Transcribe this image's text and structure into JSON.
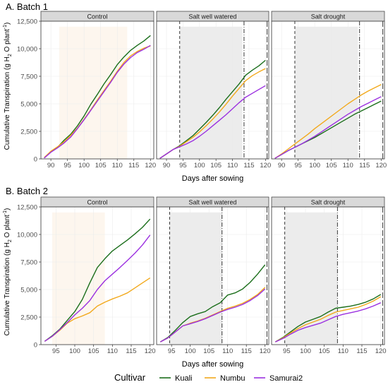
{
  "colors": {
    "Kuali": "#1b6e1b",
    "Numbu": "#f2a91c",
    "Samurai2": "#9b30e0",
    "strip_fill": "#d9d9d9",
    "control_shade": "#fdf6ee",
    "salt_shade": "#ececec"
  },
  "legend": {
    "title": "Cultivar",
    "placement": "bottom",
    "entries": [
      "Kuali",
      "Numbu",
      "Samurai2"
    ]
  },
  "chart_data": [
    {
      "type": "line",
      "title": "A. Batch 1",
      "xlabel": "Days after sowing",
      "ylabel_main": "Cumulative Transpiration (g H",
      "ylabel_sub1": "2",
      "ylabel_mid": " O plant",
      "ylabel_sup": "-1",
      "ylabel_end": ")",
      "xlim": [
        87,
        121
      ],
      "ylim": [
        0,
        12500
      ],
      "xticks": [
        90,
        95,
        100,
        105,
        110,
        115,
        120
      ],
      "yticks": [
        0,
        2500,
        5000,
        7500,
        10000,
        12500
      ],
      "ytick_labels": [
        "0",
        "2,500",
        "5,000",
        "7,500",
        "10,000",
        "12,500"
      ],
      "grid": true,
      "facets": [
        {
          "label": "Control",
          "shade": [
            92.5,
            113
          ],
          "vlines": [],
          "series": [
            {
              "name": "Kuali",
              "x": [
                88,
                90,
                92,
                94,
                96,
                98,
                100,
                102,
                104,
                106,
                108,
                110,
                112,
                114,
                116,
                118,
                120
              ],
              "y": [
                100,
                650,
                1050,
                1700,
                2250,
                3000,
                3900,
                4950,
                5850,
                6800,
                7650,
                8550,
                9250,
                9850,
                10300,
                10700,
                11200
              ]
            },
            {
              "name": "Numbu",
              "x": [
                88,
                90,
                92,
                94,
                96,
                98,
                100,
                102,
                104,
                106,
                108,
                110,
                112,
                114,
                116,
                118,
                120
              ],
              "y": [
                120,
                700,
                1100,
                1550,
                2150,
                2800,
                3600,
                4450,
                5350,
                6200,
                7050,
                7950,
                8750,
                9350,
                9750,
                10050,
                10250
              ]
            },
            {
              "name": "Samurai2",
              "x": [
                88,
                90,
                92,
                94,
                96,
                98,
                100,
                102,
                104,
                106,
                108,
                110,
                112,
                114,
                116,
                118,
                120
              ],
              "y": [
                80,
                600,
                1000,
                1450,
                2000,
                2750,
                3550,
                4400,
                5250,
                6100,
                6950,
                7850,
                8600,
                9200,
                9650,
                9950,
                10300
              ]
            }
          ]
        },
        {
          "label": "Salt well watered",
          "shade": [
            94,
            113
          ],
          "vlines": [
            {
              "x": 94,
              "style": "dashed"
            },
            {
              "x": 113.5,
              "style": "dashdot"
            },
            {
              "x": 120.5,
              "style": "longdash"
            }
          ],
          "series": [
            {
              "name": "Kuali",
              "x": [
                88,
                90,
                92,
                94,
                96,
                98,
                100,
                102,
                104,
                106,
                108,
                110,
                112,
                114,
                116,
                118,
                120
              ],
              "y": [
                50,
                450,
                850,
                1200,
                1650,
                2100,
                2700,
                3300,
                3950,
                4650,
                5400,
                6100,
                6800,
                7600,
                8050,
                8450,
                8950
              ]
            },
            {
              "name": "Numbu",
              "x": [
                88,
                90,
                92,
                94,
                96,
                98,
                100,
                102,
                104,
                106,
                108,
                110,
                112,
                114,
                116,
                118,
                120
              ],
              "y": [
                50,
                450,
                850,
                1150,
                1550,
                1950,
                2450,
                3000,
                3600,
                4250,
                4950,
                5700,
                6400,
                7100,
                7550,
                7900,
                8200
              ]
            },
            {
              "name": "Samurai2",
              "x": [
                88,
                90,
                92,
                94,
                96,
                98,
                100,
                102,
                104,
                106,
                108,
                110,
                112,
                114,
                116,
                118,
                120
              ],
              "y": [
                50,
                450,
                850,
                1100,
                1350,
                1650,
                2050,
                2500,
                3000,
                3500,
                4000,
                4550,
                5100,
                5600,
                5950,
                6300,
                6650
              ]
            }
          ]
        },
        {
          "label": "Salt drought",
          "shade": [
            94,
            113
          ],
          "vlines": [
            {
              "x": 94,
              "style": "dashed"
            },
            {
              "x": 113.5,
              "style": "dashdot"
            },
            {
              "x": 120.5,
              "style": "longdash"
            }
          ],
          "series": [
            {
              "name": "Kuali",
              "x": [
                88,
                90,
                92,
                94,
                96,
                98,
                100,
                102,
                104,
                106,
                108,
                110,
                112,
                114,
                116,
                118,
                120
              ],
              "y": [
                50,
                400,
                750,
                1050,
                1350,
                1650,
                1950,
                2300,
                2650,
                3000,
                3350,
                3700,
                4050,
                4350,
                4650,
                4950,
                5250
              ]
            },
            {
              "name": "Numbu",
              "x": [
                88,
                90,
                92,
                94,
                96,
                98,
                100,
                102,
                104,
                106,
                108,
                110,
                112,
                114,
                116,
                118,
                120
              ],
              "y": [
                50,
                450,
                900,
                1350,
                1800,
                2250,
                2750,
                3200,
                3650,
                4100,
                4550,
                5000,
                5400,
                5800,
                6150,
                6450,
                6750
              ]
            },
            {
              "name": "Samurai2",
              "x": [
                88,
                90,
                92,
                94,
                96,
                98,
                100,
                102,
                104,
                106,
                108,
                110,
                112,
                114,
                116,
                118,
                120
              ],
              "y": [
                50,
                400,
                750,
                1050,
                1350,
                1700,
                2050,
                2450,
                2850,
                3250,
                3650,
                4050,
                4400,
                4750,
                5050,
                5350,
                5650
              ]
            }
          ]
        }
      ]
    },
    {
      "type": "line",
      "title": "B. Batch 2",
      "xlabel": "Days after sowing",
      "ylabel_main": "Cumulative Transpiration (g H",
      "ylabel_sub1": "2",
      "ylabel_mid": " O plant",
      "ylabel_sup": "-1",
      "ylabel_end": ")",
      "xlim": [
        91,
        121
      ],
      "ylim": [
        0,
        12500
      ],
      "xticks": [
        95,
        100,
        105,
        110,
        115,
        120
      ],
      "yticks": [
        0,
        2500,
        5000,
        7500,
        10000,
        12500
      ],
      "ytick_labels": [
        "0",
        "2,500",
        "5,000",
        "7,500",
        "10,000",
        "12,500"
      ],
      "grid": true,
      "facets": [
        {
          "label": "Control",
          "shade": [
            94,
            108
          ],
          "vlines": [],
          "series": [
            {
              "name": "Kuali",
              "x": [
                92,
                94,
                96,
                98,
                100,
                102,
                104,
                106,
                108,
                110,
                112,
                114,
                116,
                118,
                120
              ],
              "y": [
                300,
                800,
                1400,
                2200,
                3000,
                4100,
                5600,
                7000,
                7800,
                8500,
                9000,
                9500,
                10050,
                10650,
                11400
              ]
            },
            {
              "name": "Numbu",
              "x": [
                92,
                94,
                96,
                98,
                100,
                102,
                104,
                106,
                108,
                110,
                112,
                114,
                116,
                118,
                120
              ],
              "y": [
                300,
                750,
                1300,
                1950,
                2350,
                2600,
                2900,
                3500,
                3850,
                4150,
                4400,
                4700,
                5150,
                5600,
                6050
              ]
            },
            {
              "name": "Samurai2",
              "x": [
                92,
                94,
                96,
                98,
                100,
                102,
                104,
                106,
                108,
                110,
                112,
                114,
                116,
                118,
                120
              ],
              "y": [
                300,
                750,
                1350,
                2000,
                2700,
                3300,
                4000,
                5000,
                5800,
                6400,
                7000,
                7650,
                8300,
                9050,
                9950
              ]
            }
          ]
        },
        {
          "label": "Salt well watered",
          "shade": [
            94.5,
            108.5
          ],
          "vlines": [
            {
              "x": 94.5,
              "style": "dashed"
            },
            {
              "x": 108.5,
              "style": "dashdot"
            },
            {
              "x": 120.5,
              "style": "longdash"
            }
          ],
          "series": [
            {
              "name": "Kuali",
              "x": [
                92,
                94,
                96,
                98,
                100,
                102,
                104,
                106,
                108,
                110,
                112,
                114,
                116,
                118,
                120
              ],
              "y": [
                250,
                650,
                1300,
                2000,
                2550,
                2800,
                3000,
                3450,
                3800,
                4500,
                4700,
                5050,
                5650,
                6400,
                7250
              ]
            },
            {
              "name": "Numbu",
              "x": [
                92,
                94,
                96,
                98,
                100,
                102,
                104,
                106,
                108,
                110,
                112,
                114,
                116,
                118,
                120
              ],
              "y": [
                250,
                600,
                1150,
                1700,
                1950,
                2150,
                2400,
                2700,
                3000,
                3300,
                3500,
                3750,
                4100,
                4550,
                5200
              ]
            },
            {
              "name": "Samurai2",
              "x": [
                92,
                94,
                96,
                98,
                100,
                102,
                104,
                106,
                108,
                110,
                112,
                114,
                116,
                118,
                120
              ],
              "y": [
                250,
                600,
                1150,
                1700,
                1900,
                2100,
                2350,
                2650,
                2950,
                3200,
                3400,
                3650,
                4000,
                4450,
                5050
              ]
            }
          ]
        },
        {
          "label": "Salt drought",
          "shade": [
            94.5,
            108.5
          ],
          "vlines": [
            {
              "x": 94.5,
              "style": "dashed"
            },
            {
              "x": 108.5,
              "style": "dashdot"
            },
            {
              "x": 120.5,
              "style": "longdash"
            }
          ],
          "series": [
            {
              "name": "Kuali",
              "x": [
                92,
                94,
                96,
                98,
                100,
                102,
                104,
                106,
                108,
                110,
                112,
                114,
                116,
                118,
                120
              ],
              "y": [
                250,
                650,
                1150,
                1650,
                2050,
                2300,
                2550,
                2950,
                3300,
                3400,
                3500,
                3650,
                3850,
                4150,
                4550
              ]
            },
            {
              "name": "Numbu",
              "x": [
                92,
                94,
                96,
                98,
                100,
                102,
                104,
                106,
                108,
                110,
                112,
                114,
                116,
                118,
                120
              ],
              "y": [
                250,
                600,
                1050,
                1450,
                1800,
                2050,
                2300,
                2650,
                2950,
                3100,
                3250,
                3400,
                3650,
                3950,
                4350
              ]
            },
            {
              "name": "Samurai2",
              "x": [
                92,
                94,
                96,
                98,
                100,
                102,
                104,
                106,
                108,
                110,
                112,
                114,
                116,
                118,
                120
              ],
              "y": [
                250,
                550,
                950,
                1300,
                1550,
                1750,
                1950,
                2250,
                2550,
                2750,
                2900,
                3050,
                3250,
                3500,
                3800
              ]
            }
          ]
        }
      ]
    }
  ]
}
